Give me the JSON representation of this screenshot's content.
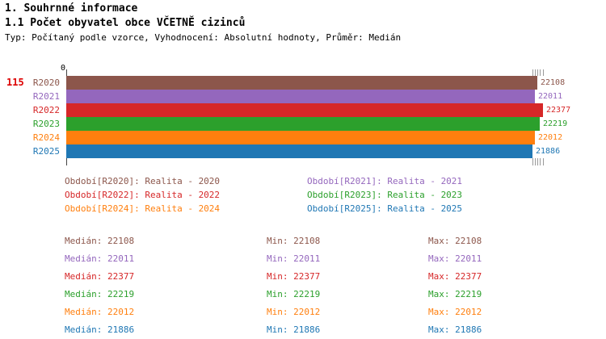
{
  "page": {
    "title": "1. Souhrnné informace",
    "subtitle": "1.1 Počet obyvatel obce VČETNĚ cizinců",
    "meta": "Typ: Počítaný podle vzorce, Vyhodnocení: Absolutní hodnoty, Průměr: Medián"
  },
  "chart_data": {
    "type": "bar",
    "orientation": "horizontal",
    "title": "1.1 Počet obyvatel obce VČETNĚ cizinců",
    "origin_label": "0",
    "row_count_label": "115",
    "categories": [
      "R2020",
      "R2021",
      "R2022",
      "R2023",
      "R2024",
      "R2025"
    ],
    "values": [
      22108,
      22011,
      22377,
      22219,
      22012,
      21886
    ],
    "colors": [
      "#8c564b",
      "#9467bd",
      "#d62728",
      "#2ca02c",
      "#ff7f0e",
      "#1f77b4"
    ],
    "xlim": [
      0,
      22377
    ],
    "xlabel": "",
    "ylabel": "",
    "grid": false,
    "legend_position": "below"
  },
  "legend": {
    "items": [
      {
        "label": "Období[R2020]: Realita - 2020",
        "color": "#8c564b"
      },
      {
        "label": "Období[R2021]: Realita - 2021",
        "color": "#9467bd"
      },
      {
        "label": "Období[R2022]: Realita - 2022",
        "color": "#d62728"
      },
      {
        "label": "Období[R2023]: Realita - 2023",
        "color": "#2ca02c"
      },
      {
        "label": "Období[R2024]: Realita - 2024",
        "color": "#ff7f0e"
      },
      {
        "label": "Období[R2025]: Realita - 2025",
        "color": "#1f77b4"
      }
    ]
  },
  "stats": {
    "labels": {
      "median": "Medián",
      "min": "Min",
      "max": "Max"
    },
    "rows": [
      {
        "median": 22108,
        "min": 22108,
        "max": 22108,
        "color": "#8c564b"
      },
      {
        "median": 22011,
        "min": 22011,
        "max": 22011,
        "color": "#9467bd"
      },
      {
        "median": 22377,
        "min": 22377,
        "max": 22377,
        "color": "#d62728"
      },
      {
        "median": 22219,
        "min": 22219,
        "max": 22219,
        "color": "#2ca02c"
      },
      {
        "median": 22012,
        "min": 22012,
        "max": 22012,
        "color": "#ff7f0e"
      },
      {
        "median": 21886,
        "min": 21886,
        "max": 21886,
        "color": "#1f77b4"
      }
    ]
  }
}
